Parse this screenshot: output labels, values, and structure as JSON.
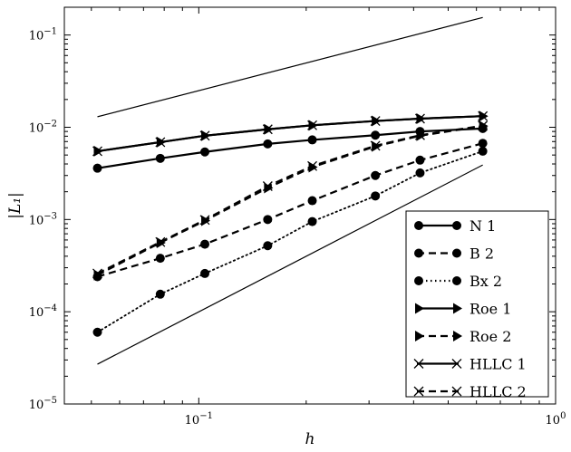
{
  "chart_data": {
    "type": "line",
    "xlabel": "h",
    "ylabel": "|L₁|",
    "xscale": "log",
    "yscale": "log",
    "xlim": [
      0.042,
      1.0
    ],
    "ylim": [
      1e-05,
      0.2
    ],
    "grid": false,
    "legend_position": "lower-right",
    "x_tick_labels": [
      {
        "value": 0.1,
        "base": "10",
        "exp": "−1"
      },
      {
        "value": 1.0,
        "base": "10",
        "exp": "0"
      }
    ],
    "y_tick_labels": [
      {
        "value": 1e-05,
        "base": "10",
        "exp": "−5"
      },
      {
        "value": 0.0001,
        "base": "10",
        "exp": "−4"
      },
      {
        "value": 0.001,
        "base": "10",
        "exp": "−3"
      },
      {
        "value": 0.01,
        "base": "10",
        "exp": "−2"
      },
      {
        "value": 0.1,
        "base": "10",
        "exp": "−1"
      }
    ],
    "reference_lines": [
      {
        "x": [
          0.052,
          0.625
        ],
        "y": [
          0.013,
          0.155
        ]
      },
      {
        "x": [
          0.052,
          0.625
        ],
        "y": [
          2.7e-05,
          0.0039
        ]
      }
    ],
    "series": [
      {
        "name": "N 1",
        "style": "solid",
        "marker": "circle",
        "x": [
          0.052,
          0.078,
          0.104,
          0.156,
          0.208,
          0.3125,
          0.417,
          0.625
        ],
        "y": [
          0.0036,
          0.0046,
          0.0054,
          0.0066,
          0.0073,
          0.0082,
          0.009,
          0.0097
        ]
      },
      {
        "name": "B 2",
        "style": "dashed",
        "marker": "circle",
        "x": [
          0.052,
          0.078,
          0.104,
          0.156,
          0.208,
          0.3125,
          0.417,
          0.625
        ],
        "y": [
          0.00024,
          0.00038,
          0.00054,
          0.001,
          0.0016,
          0.003,
          0.0044,
          0.0067
        ]
      },
      {
        "name": "Bx 2",
        "style": "dotted",
        "marker": "circle",
        "x": [
          0.052,
          0.078,
          0.104,
          0.156,
          0.208,
          0.3125,
          0.417,
          0.625
        ],
        "y": [
          6e-05,
          0.000155,
          0.00026,
          0.00052,
          0.00095,
          0.0018,
          0.0032,
          0.0055
        ]
      },
      {
        "name": "Roe 1",
        "style": "solid",
        "marker": "triangle",
        "x": [
          0.052,
          0.078,
          0.104,
          0.156,
          0.208,
          0.3125,
          0.417,
          0.625
        ],
        "y": [
          0.0055,
          0.0069,
          0.0081,
          0.0095,
          0.0105,
          0.0117,
          0.0124,
          0.0132
        ]
      },
      {
        "name": "Roe 2",
        "style": "dashed",
        "marker": "triangle",
        "x": [
          0.052,
          0.078,
          0.104,
          0.156,
          0.208,
          0.3125,
          0.417,
          0.625
        ],
        "y": [
          0.00025,
          0.00056,
          0.00097,
          0.0022,
          0.0037,
          0.0062,
          0.0081,
          0.0103
        ]
      },
      {
        "name": "HLLC 1",
        "style": "solid",
        "marker": "x",
        "x": [
          0.052,
          0.078,
          0.104,
          0.156,
          0.208,
          0.3125,
          0.417,
          0.625
        ],
        "y": [
          0.0055,
          0.0069,
          0.0081,
          0.0095,
          0.0105,
          0.0117,
          0.0124,
          0.0132
        ]
      },
      {
        "name": "HLLC 2",
        "style": "dashed",
        "marker": "x",
        "x": [
          0.052,
          0.078,
          0.104,
          0.156,
          0.208,
          0.3125,
          0.417,
          0.625
        ],
        "y": [
          0.00026,
          0.00057,
          0.00099,
          0.0023,
          0.0038,
          0.0063,
          0.0082,
          0.0104
        ]
      }
    ]
  }
}
